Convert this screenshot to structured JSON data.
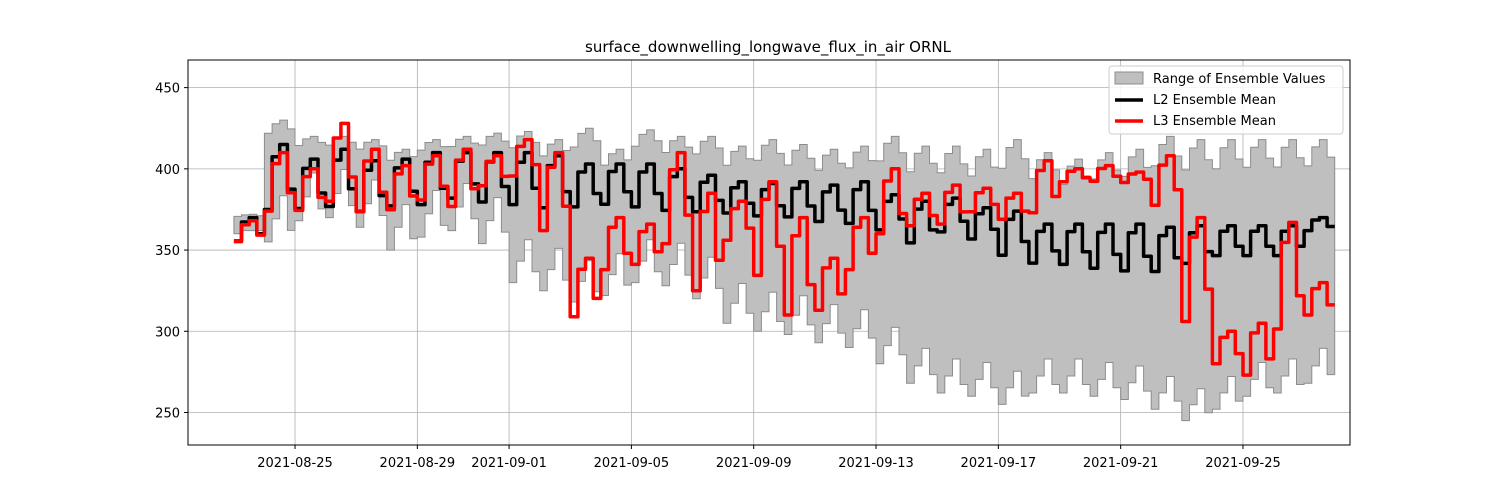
{
  "chart_data": {
    "type": "line",
    "title": "surface_downwelling_longwave_flux_in_air ORNL",
    "xlabel": "",
    "ylabel": "",
    "x_start": "2021-08-23",
    "x_end": "2021-09-27",
    "xlim": [
      "2021-08-21 12:00",
      "2021-09-28 12:00"
    ],
    "ylim": [
      230,
      467
    ],
    "x_ticks": [
      "2021-08-25",
      "2021-08-29",
      "2021-09-01",
      "2021-09-05",
      "2021-09-09",
      "2021-09-13",
      "2021-09-17",
      "2021-09-21",
      "2021-09-25"
    ],
    "y_ticks": [
      250,
      300,
      350,
      400,
      450
    ],
    "grid": true,
    "legend_position": "top-right",
    "colors": {
      "range": "#bfbfbf",
      "range_edge": "#8c8c8c",
      "l2": "#000000",
      "l3": "#ff0000"
    },
    "series": [
      {
        "name": "Range of Ensemble Values",
        "kind": "band",
        "x": [
          "2021-08-23",
          "2021-08-24",
          "2021-08-25",
          "2021-08-26",
          "2021-08-27",
          "2021-08-28",
          "2021-08-29",
          "2021-08-30",
          "2021-08-31",
          "2021-09-01",
          "2021-09-02",
          "2021-09-03",
          "2021-09-04",
          "2021-09-05",
          "2021-09-06",
          "2021-09-07",
          "2021-09-08",
          "2021-09-09",
          "2021-09-10",
          "2021-09-11",
          "2021-09-12",
          "2021-09-13",
          "2021-09-14",
          "2021-09-15",
          "2021-09-16",
          "2021-09-17",
          "2021-09-18",
          "2021-09-19",
          "2021-09-20",
          "2021-09-21",
          "2021-09-22",
          "2021-09-23",
          "2021-09-24",
          "2021-09-25",
          "2021-09-26",
          "2021-09-27"
        ],
        "lower": [
          360,
          355,
          368,
          370,
          364,
          350,
          358,
          362,
          354,
          330,
          325,
          318,
          322,
          330,
          328,
          320,
          305,
          300,
          298,
          293,
          290,
          280,
          268,
          262,
          260,
          255,
          262,
          262,
          260,
          258,
          252,
          245,
          252,
          260,
          262,
          268
        ],
        "upper": [
          372,
          430,
          420,
          420,
          418,
          412,
          418,
          420,
          422,
          423,
          418,
          425,
          412,
          424,
          420,
          420,
          414,
          418,
          415,
          412,
          414,
          420,
          414,
          414,
          412,
          418,
          410,
          406,
          410,
          412,
          420,
          418,
          418,
          418,
          418,
          418
        ]
      },
      {
        "name": "L2 Ensemble Mean",
        "kind": "line",
        "x": [
          "2021-08-23",
          "2021-08-24",
          "2021-08-25",
          "2021-08-26",
          "2021-08-27",
          "2021-08-28",
          "2021-08-29",
          "2021-08-30",
          "2021-08-31",
          "2021-09-01",
          "2021-09-02",
          "2021-09-03",
          "2021-09-04",
          "2021-09-05",
          "2021-09-06",
          "2021-09-07",
          "2021-09-08",
          "2021-09-09",
          "2021-09-10",
          "2021-09-11",
          "2021-09-12",
          "2021-09-13",
          "2021-09-14",
          "2021-09-15",
          "2021-09-16",
          "2021-09-17",
          "2021-09-18",
          "2021-09-19",
          "2021-09-20",
          "2021-09-21",
          "2021-09-22",
          "2021-09-23",
          "2021-09-24",
          "2021-09-25",
          "2021-09-26",
          "2021-09-27"
        ],
        "min": [
          352,
          365,
          368,
          368,
          366,
          370,
          370,
          375,
          372,
          370,
          368,
          370,
          372,
          370,
          368,
          368,
          368,
          366,
          365,
          362,
          360,
          357,
          348,
          356,
          352,
          340,
          336,
          335,
          332,
          330,
          330,
          336,
          342,
          342,
          342,
          360
        ],
        "max": [
          370,
          415,
          406,
          412,
          405,
          406,
          410,
          410,
          410,
          410,
          408,
          403,
          403,
          403,
          400,
          396,
          392,
          391,
          392,
          390,
          392,
          384,
          380,
          382,
          376,
          374,
          366,
          366,
          366,
          366,
          364,
          365,
          365,
          365,
          365,
          370
        ]
      },
      {
        "name": "L3 Ensemble Mean",
        "kind": "line",
        "x": [
          "2021-08-23",
          "2021-08-24",
          "2021-08-25",
          "2021-08-26",
          "2021-08-27",
          "2021-08-28",
          "2021-08-29",
          "2021-08-30",
          "2021-08-31",
          "2021-09-01",
          "2021-09-02",
          "2021-09-03",
          "2021-09-04",
          "2021-09-05",
          "2021-09-06",
          "2021-09-07",
          "2021-09-08",
          "2021-09-09",
          "2021-09-10",
          "2021-09-11",
          "2021-09-12",
          "2021-09-13",
          "2021-09-14",
          "2021-09-15",
          "2021-09-16",
          "2021-09-17",
          "2021-09-18",
          "2021-09-19",
          "2021-09-20",
          "2021-09-21",
          "2021-09-22",
          "2021-09-23",
          "2021-09-24",
          "2021-09-25",
          "2021-09-26",
          "2021-09-27"
        ],
        "min": [
          352,
          365,
          368,
          368,
          364,
          368,
          374,
          368,
          385,
          390,
          350,
          300,
          330,
          335,
          340,
          310,
          350,
          320,
          295,
          305,
          330,
          350,
          360,
          360,
          370,
          365,
          365,
          390,
          390,
          390,
          370,
          290,
          275,
          265,
          285,
          305
        ],
        "max": [
          368,
          410,
          400,
          428,
          412,
          402,
          408,
          412,
          408,
          418,
          410,
          345,
          370,
          366,
          410,
          385,
          380,
          392,
          370,
          345,
          370,
          400,
          385,
          390,
          388,
          385,
          405,
          400,
          402,
          398,
          408,
          370,
          300,
          305,
          367,
          330
        ]
      }
    ]
  }
}
